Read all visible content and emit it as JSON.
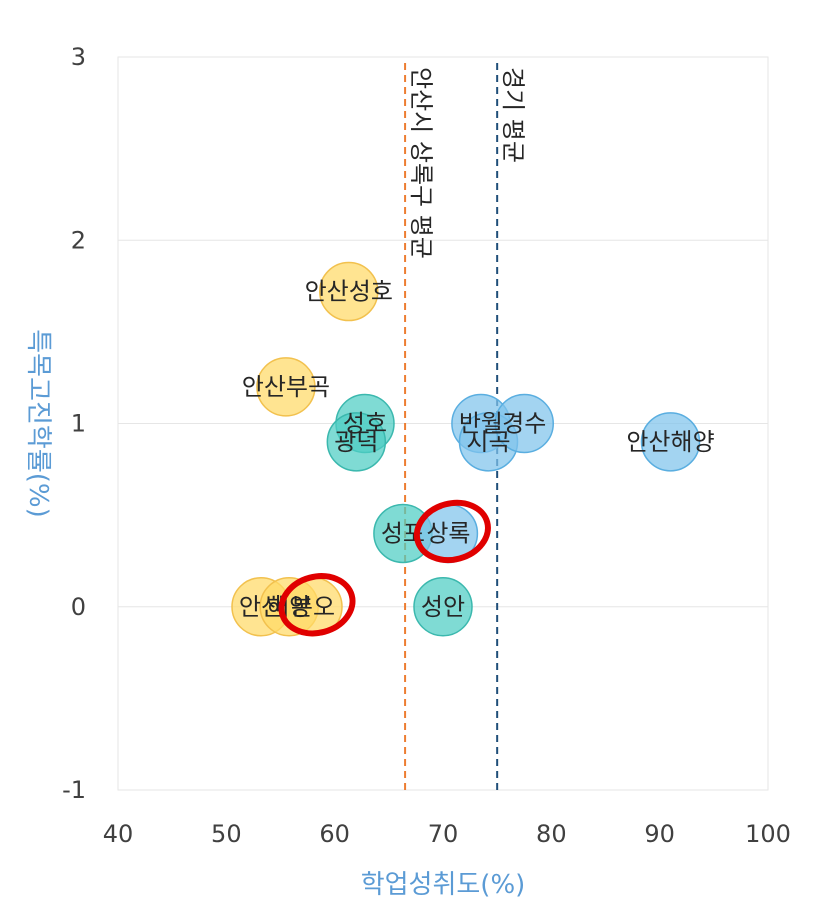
{
  "chart_data": {
    "type": "scatter",
    "xlabel": "학업성취도(%)",
    "ylabel": "특목고진학률(%)",
    "xlim": [
      40,
      100
    ],
    "ylim": [
      -1,
      3
    ],
    "xticks": [
      "40",
      "50",
      "60",
      "70",
      "80",
      "90",
      "100"
    ],
    "yticks": [
      "3",
      "2",
      "1",
      "0",
      "-1"
    ],
    "grid": "horizontal",
    "axis_title_color": "#5b9bd5",
    "reference_lines": [
      {
        "label": "안산시 상록구 평균",
        "x": 66.5,
        "color": "#ed7d31",
        "style": "dashed"
      },
      {
        "label": "경기 평균",
        "x": 75,
        "color": "#1f4e79",
        "style": "dashed"
      }
    ],
    "group_colors": {
      "yellow": "#ffd966",
      "teal": "#4ecdc4",
      "blue": "#7fc4ec"
    },
    "points": [
      {
        "label": "안산성호",
        "x": 61.3,
        "y": 1.72,
        "group": "yellow"
      },
      {
        "label": "안산부곡",
        "x": 55.5,
        "y": 1.2,
        "group": "yellow"
      },
      {
        "label": "안산",
        "x": 53.2,
        "y": 0.0,
        "group": "yellow"
      },
      {
        "label": "해양",
        "x": 55.8,
        "y": 0.0,
        "group": "yellow"
      },
      {
        "label": "본오",
        "x": 58.0,
        "y": 0.0,
        "group": "yellow",
        "highlighted": true
      },
      {
        "label": "성호",
        "x": 62.8,
        "y": 1.0,
        "group": "teal"
      },
      {
        "label": "광덕",
        "x": 62.0,
        "y": 0.9,
        "group": "teal"
      },
      {
        "label": "성포",
        "x": 66.3,
        "y": 0.4,
        "group": "teal"
      },
      {
        "label": "성안",
        "x": 70.0,
        "y": 0.0,
        "group": "teal"
      },
      {
        "label": "상록",
        "x": 70.5,
        "y": 0.4,
        "group": "blue",
        "highlighted": true
      },
      {
        "label": "반월",
        "x": 73.5,
        "y": 1.0,
        "group": "blue"
      },
      {
        "label": "시곡",
        "x": 74.2,
        "y": 0.9,
        "group": "blue"
      },
      {
        "label": "경수",
        "x": 77.5,
        "y": 1.0,
        "group": "blue"
      },
      {
        "label": "안산해양",
        "x": 91.0,
        "y": 0.9,
        "group": "blue"
      }
    ],
    "highlight_color": "#e00000"
  }
}
